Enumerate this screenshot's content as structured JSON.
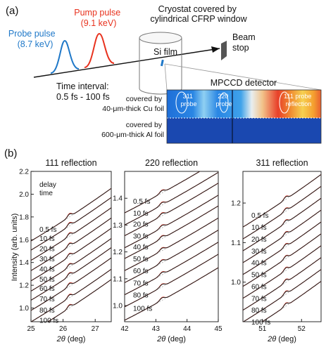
{
  "panel_a": {
    "label": "(a)",
    "probe_label": [
      "Probe pulse",
      "(8.7 keV)"
    ],
    "pump_label": [
      "Pump pulse",
      "(9.1 keV)"
    ],
    "cryostat_label": [
      "Cryostat covered by",
      "cylindrical CFRP window"
    ],
    "film_label": "Si film",
    "beamstop_label": [
      "Beam",
      "stop"
    ],
    "interval_label": [
      "Time interval:",
      "0.5 fs - 100 fs"
    ],
    "detector_title": "MPCCD detector",
    "cu_label": [
      "covered by",
      "40-μm-thick Cu foil"
    ],
    "al_label": [
      "covered by",
      "600-μm-thick Al foil"
    ],
    "spot_311": [
      "311",
      "probe"
    ],
    "spot_220": [
      "220",
      "probe"
    ],
    "spot_111": [
      "111 probe",
      "reflection"
    ],
    "colors": {
      "probe": "#1f78c8",
      "pump": "#e8321e"
    }
  },
  "panel_b": {
    "label": "(b)",
    "ylabel": "Intensity (arb. units)",
    "xlabel_italic": "2θ",
    "xlabel_rest": " (deg)",
    "legend_title": [
      "delay",
      "time"
    ],
    "colors": {
      "measured": "#e03a2a",
      "fit": "#202020",
      "baseline": "#999999"
    }
  },
  "chart_data": [
    {
      "type": "line",
      "title": "111 reflection",
      "xlim": [
        25,
        27.5
      ],
      "xticks": [
        "25",
        "26",
        "27"
      ],
      "ylim": [
        0.88,
        2.2
      ],
      "yticks": [
        "1.0",
        "1.2",
        "1.4",
        "1.6",
        "1.8",
        "2.0",
        "2.2"
      ],
      "delays": [
        "0.5 fs",
        "10 fs",
        "20 fs",
        "30 fs",
        "40 fs",
        "50 fs",
        "60 fs",
        "70 fs",
        "80 fs",
        "100 fs"
      ],
      "offsets": [
        1.8,
        1.72,
        1.63,
        1.54,
        1.45,
        1.36,
        1.28,
        1.19,
        1.09,
        1.0
      ],
      "peak_x": 26.2,
      "peak_height": 0.03
    },
    {
      "type": "line",
      "title": "220 reflection",
      "xlim": [
        42,
        45
      ],
      "xticks": [
        "42",
        "43",
        "44",
        "45"
      ],
      "ylim": [
        0.94,
        1.5
      ],
      "yticks": [
        "1.0",
        "1.1",
        "1.2",
        "1.3",
        "1.4"
      ],
      "delays": [
        "0.5 fs",
        "10 fs",
        "20 fs",
        "30 fs",
        "40 fs",
        "50 fs",
        "60 fs",
        "70 fs",
        "80 fs",
        "100 fs"
      ],
      "offsets": [
        1.435,
        1.39,
        1.35,
        1.305,
        1.265,
        1.22,
        1.175,
        1.13,
        1.085,
        1.035
      ],
      "peak_x": 43.2,
      "peak_height": 0.011
    },
    {
      "type": "line",
      "title": "311 reflection",
      "xlim": [
        50.5,
        52.5
      ],
      "xticks": [
        "51",
        "52"
      ],
      "ylim": [
        0.9,
        1.28
      ],
      "yticks": [
        "1.0",
        "1.1",
        "1.2"
      ],
      "delays": [
        "0.5 fs",
        "10 fs",
        "20 fs",
        "30 fs",
        "40 fs",
        "50 fs",
        "60 fs",
        "70 fs",
        "80 fs",
        "100 fs"
      ],
      "offsets": [
        1.2,
        1.17,
        1.14,
        1.11,
        1.08,
        1.05,
        1.02,
        0.99,
        0.96,
        0.93
      ],
      "peak_x": 51.6,
      "peak_height": 0.008
    }
  ]
}
